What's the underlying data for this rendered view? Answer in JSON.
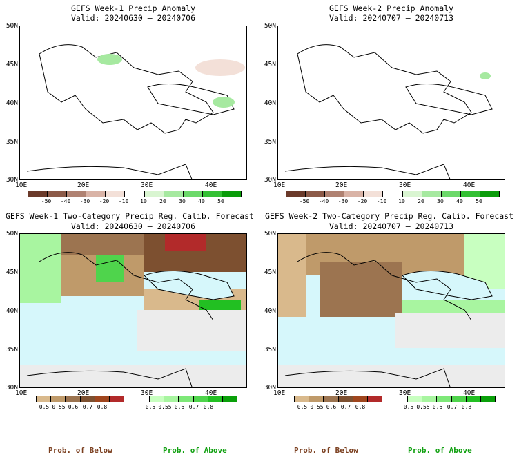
{
  "panels": [
    {
      "title": "GEFS Week-1 Precip Anomaly",
      "valid": "Valid: 20240630 – 20240706"
    },
    {
      "title": "GEFS Week-2 Precip Anomaly",
      "valid": "Valid: 20240707 – 20240713"
    },
    {
      "title": "GEFS Week-1 Two-Category Precip Reg. Calib. Forecast",
      "valid": "Valid: 20240630 – 20240706"
    },
    {
      "title": "GEFS Week-2 Two-Category Precip Reg. Calib. Forecast",
      "valid": "Valid: 20240707 – 20240713"
    }
  ],
  "axes": {
    "lat_labels": [
      "50N",
      "45N",
      "40N",
      "35N",
      "30N"
    ],
    "lon_labels": [
      "10E",
      "20E",
      "30E",
      "40E"
    ]
  },
  "anomaly_colorbar": {
    "ticks": [
      "-50",
      "-40",
      "-30",
      "-20",
      "-10",
      "10",
      "20",
      "30",
      "40",
      "50"
    ],
    "colors": [
      "#6b3a2a",
      "#8c5a48",
      "#b08272",
      "#d9b3a6",
      "#f3e0d8",
      "#ffffff",
      "#d9f5d1",
      "#a6e9a0",
      "#6cd96a",
      "#34c034",
      "#0a9c0a"
    ]
  },
  "prob_colorbars": {
    "below_ticks": [
      "0.5",
      "0.55",
      "0.6",
      "0.7",
      "0.8"
    ],
    "above_ticks": [
      "0.5",
      "0.55",
      "0.6",
      "0.7",
      "0.8"
    ],
    "below_colors": [
      "#d9b98c",
      "#bf9a6a",
      "#9c7450",
      "#7d5030",
      "#a0461e",
      "#b22a2a"
    ],
    "above_colors": [
      "#c8ffc0",
      "#a8f5a0",
      "#7ee878",
      "#4fd44c",
      "#22c022",
      "#0aa00a"
    ]
  },
  "footer": {
    "below": "Prob. of Below",
    "above": "Prob. of Above"
  },
  "colors": {
    "sea": "#d6f7fb",
    "land_gray": "#ececec",
    "below_text": "#7a3e1e",
    "above_text": "#10a010"
  }
}
